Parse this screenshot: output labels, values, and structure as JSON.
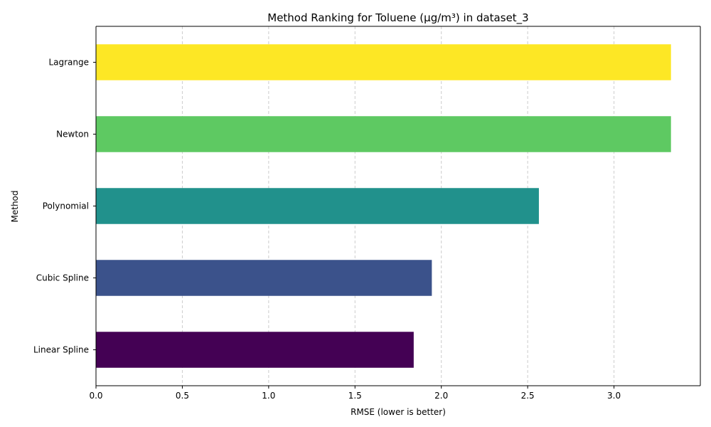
{
  "chart_data": {
    "type": "bar",
    "orientation": "horizontal",
    "title": "Method Ranking for Toluene (µg/m³) in dataset_3",
    "xlabel": "RMSE (lower is better)",
    "ylabel": "Method",
    "categories": [
      "Linear Spline",
      "Cubic Spline",
      "Polynomial",
      "Newton",
      "Lagrange"
    ],
    "values": [
      1.84,
      1.945,
      2.565,
      3.33,
      3.33
    ],
    "colors": [
      "#440154",
      "#3b528b",
      "#21918c",
      "#5ec962",
      "#fde725"
    ],
    "xlim": [
      0,
      3.5
    ],
    "xticks": [
      "0.0",
      "0.5",
      "1.0",
      "1.5",
      "2.0",
      "2.5",
      "3.0"
    ],
    "grid": "x-dashed"
  }
}
